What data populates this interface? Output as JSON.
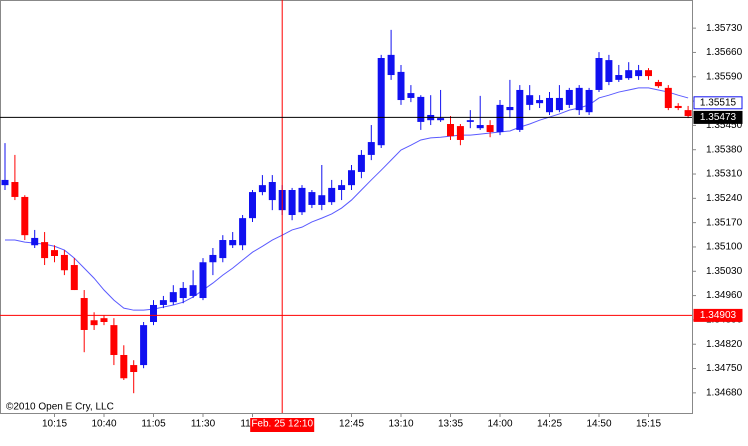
{
  "chart_data": {
    "type": "candlestick",
    "copyright": "©2010 Open E Cry, LLC",
    "categories": [
      null,
      null,
      null,
      null,
      null,
      "10:15",
      null,
      null,
      null,
      null,
      "10:40",
      null,
      null,
      null,
      null,
      "11:05",
      null,
      null,
      null,
      null,
      "11:30",
      null,
      null,
      null,
      null,
      "11:55",
      null,
      null,
      null,
      null,
      null,
      null,
      null,
      null,
      null,
      "12:45",
      null,
      null,
      null,
      null,
      "13:10",
      null,
      null,
      null,
      null,
      "13:35",
      null,
      null,
      null,
      null,
      "14:00",
      null,
      null,
      null,
      null,
      "14:25",
      null,
      null,
      null,
      null,
      "14:50",
      null,
      null,
      null,
      null,
      "15:15",
      null,
      null,
      null,
      null
    ],
    "open": [
      1.35278,
      1.35287,
      1.35244,
      1.35105,
      1.35114,
      1.35091,
      1.35077,
      1.35048,
      1.34953,
      1.34889,
      1.34895,
      1.34875,
      1.34789,
      1.3476,
      1.3476,
      1.34884,
      1.34933,
      1.34941,
      1.34953,
      1.34959,
      1.34953,
      1.35056,
      1.35068,
      1.35105,
      1.35105,
      1.35183,
      1.35258,
      1.35235,
      1.35206,
      1.35192,
      1.352,
      1.35221,
      1.35221,
      1.35229,
      1.35264,
      1.35278,
      1.35316,
      1.35365,
      1.35393,
      1.35595,
      1.35523,
      1.35529,
      1.3546,
      1.35465,
      1.35465,
      1.35454,
      1.35448,
      1.3546,
      1.35442,
      1.35451,
      1.35431,
      1.35494,
      1.35437,
      1.35509,
      1.35514,
      1.35488,
      1.35494,
      1.35509,
      1.35494,
      1.35488,
      1.35552,
      1.35575,
      1.35581,
      1.35586,
      1.35592,
      1.35609,
      1.35575,
      1.35558,
      1.35506,
      1.35494
    ],
    "high": [
      1.35399,
      1.35365,
      1.35249,
      1.35149,
      1.35143,
      1.35105,
      1.35091,
      1.35068,
      1.34976,
      1.34912,
      1.34904,
      1.34895,
      1.34817,
      1.34774,
      1.34884,
      1.34947,
      1.34959,
      1.3499,
      1.34999,
      1.35033,
      1.35068,
      1.35097,
      1.35134,
      1.35143,
      1.35192,
      1.35264,
      1.35307,
      1.35307,
      1.35278,
      1.3527,
      1.35278,
      1.35264,
      1.35336,
      1.35293,
      1.35293,
      1.35336,
      1.35379,
      1.35451,
      1.35653,
      1.35725,
      1.35624,
      1.35566,
      1.35537,
      1.35537,
      1.35552,
      1.35477,
      1.35454,
      1.35494,
      1.35535,
      1.35465,
      1.35523,
      1.35581,
      1.35566,
      1.35566,
      1.35537,
      1.35546,
      1.35566,
      1.35558,
      1.35566,
      1.35558,
      1.35661,
      1.35653,
      1.35624,
      1.35632,
      1.35624,
      1.35615,
      1.35581,
      1.35566,
      1.35514,
      1.35506
    ],
    "low": [
      1.35264,
      1.35235,
      1.3512,
      1.35097,
      1.35048,
      1.35056,
      1.35019,
      1.34976,
      1.34797,
      1.34861,
      1.34875,
      1.3476,
      1.34717,
      1.34679,
      1.34751,
      1.34875,
      1.34924,
      1.34933,
      1.34938,
      1.34953,
      1.34947,
      1.35019,
      1.35056,
      1.35097,
      1.35091,
      1.35172,
      1.35249,
      1.35206,
      1.35192,
      1.35177,
      1.35192,
      1.35212,
      1.35206,
      1.35221,
      1.35235,
      1.35264,
      1.35298,
      1.3535,
      1.35385,
      1.35581,
      1.35509,
      1.35517,
      1.35437,
      1.35451,
      1.3546,
      1.35408,
      1.35393,
      1.35442,
      1.35437,
      1.35416,
      1.35422,
      1.35471,
      1.35431,
      1.35494,
      1.355,
      1.3548,
      1.35488,
      1.355,
      1.3548,
      1.3548,
      1.35546,
      1.35566,
      1.35575,
      1.35581,
      1.35581,
      1.35581,
      1.35558,
      1.35494,
      1.35494,
      1.35471
    ],
    "close": [
      1.35293,
      1.35244,
      1.35134,
      1.35126,
      1.35068,
      1.35074,
      1.35033,
      1.34976,
      1.34861,
      1.34875,
      1.34884,
      1.34789,
      1.34722,
      1.3474,
      1.34875,
      1.34933,
      1.34947,
      1.3497,
      1.34982,
      1.3499,
      1.35056,
      1.35077,
      1.3512,
      1.3512,
      1.35183,
      1.35258,
      1.35278,
      1.35287,
      1.35264,
      1.35264,
      1.3527,
      1.35258,
      1.35249,
      1.3527,
      1.35278,
      1.35321,
      1.35365,
      1.35402,
      1.35644,
      1.35653,
      1.35604,
      1.35543,
      1.35532,
      1.3548,
      1.35471,
      1.35419,
      1.35408,
      1.35465,
      1.35451,
      1.35431,
      1.35509,
      1.35503,
      1.35552,
      1.35537,
      1.35523,
      1.35529,
      1.35529,
      1.35552,
      1.35558,
      1.35552,
      1.35644,
      1.35638,
      1.35595,
      1.35609,
      1.35609,
      1.35592,
      1.35563,
      1.355,
      1.355,
      1.35477
    ],
    "up_color": "#1010f0",
    "down_color": "#ff0000",
    "ma_values": [
      1.3512,
      1.3512,
      1.35114,
      1.35111,
      1.35108,
      1.35102,
      1.35091,
      1.35068,
      1.35039,
      1.3501,
      1.34976,
      1.34947,
      1.34924,
      1.34918,
      1.34918,
      1.34921,
      1.34927,
      1.34933,
      1.34941,
      1.34956,
      1.34976,
      1.34996,
      1.35019,
      1.35039,
      1.35062,
      1.35085,
      1.35102,
      1.3512,
      1.35134,
      1.35149,
      1.35157,
      1.35172,
      1.35183,
      1.35195,
      1.35212,
      1.35235,
      1.35264,
      1.35293,
      1.35321,
      1.3535,
      1.35379,
      1.35393,
      1.35408,
      1.35414,
      1.35416,
      1.35419,
      1.35422,
      1.35422,
      1.35425,
      1.35428,
      1.35431,
      1.35434,
      1.35445,
      1.35454,
      1.35465,
      1.35474,
      1.35483,
      1.35494,
      1.355,
      1.35509,
      1.35529,
      1.35537,
      1.35546,
      1.35552,
      1.35558,
      1.35558,
      1.35552,
      1.35546,
      1.35537,
      1.35529
    ],
    "ma_color": "#5a5aff",
    "ylim": [
      1.34622,
      1.35811
    ],
    "yticks": [
      {
        "value": 1.3573,
        "label": "1.35730"
      },
      {
        "value": 1.3566,
        "label": "1.35660"
      },
      {
        "value": 1.3559,
        "label": "1.35590"
      },
      {
        "value": 1.3552,
        "label": "1.35520"
      },
      {
        "value": 1.3545,
        "label": "1.35450"
      },
      {
        "value": 1.3538,
        "label": "1.35380"
      },
      {
        "value": 1.3531,
        "label": "1.35310"
      },
      {
        "value": 1.3524,
        "label": "1.35240"
      },
      {
        "value": 1.3517,
        "label": "1.35170"
      },
      {
        "value": 1.351,
        "label": "1.35100"
      },
      {
        "value": 1.3503,
        "label": "1.35030"
      },
      {
        "value": 1.3496,
        "label": "1.34960"
      },
      {
        "value": 1.3489,
        "label": "1.34890"
      },
      {
        "value": 1.3482,
        "label": "1.34820"
      },
      {
        "value": 1.3475,
        "label": "1.34750"
      },
      {
        "value": 1.3468,
        "label": "1.34680"
      }
    ],
    "markers": [
      {
        "value": 1.35515,
        "label": "1.35515",
        "style": "outline",
        "color": "#1010f0"
      },
      {
        "value": 1.35473,
        "label": "1.35473",
        "style": "line",
        "color": "#000000"
      },
      {
        "value": 1.34903,
        "label": "1.34903",
        "style": "line",
        "color": "#ff0000"
      }
    ],
    "crosshair": {
      "bar": 28,
      "label": "Feb. 25 12:10",
      "color": "#ff0000"
    }
  }
}
